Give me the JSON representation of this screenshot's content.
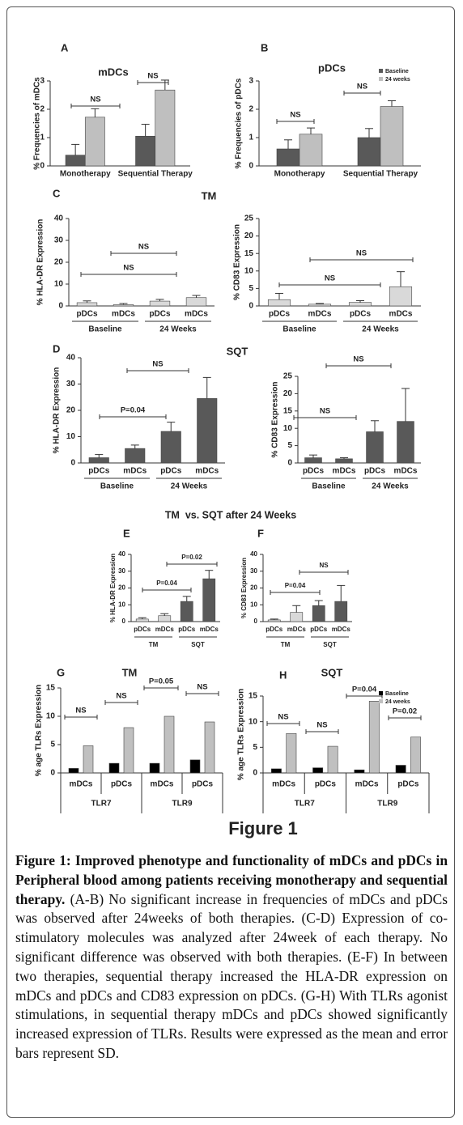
{
  "section_titles": [
    "TM",
    "SQT",
    "TM  vs. SQT after 24 Weeks"
  ],
  "figure_label": "Figure 1",
  "caption": {
    "bold": "Figure 1: Improved phenotype and functionality of mDCs and pDCs in Peripheral blood among patients receiving monotherapy and sequential therapy.",
    "text": "(A-B) No significant increase in frequencies of mDCs and pDCs was observed after 24weeks of both therapies. (C-D) Expression of co-stimulatory molecules was analyzed after 24week of each therapy. No significant difference was observed with both therapies. (E-F) In between two therapies, sequential therapy increased the HLA-DR expression on mDCs and pDCs and CD83 expression on pDCs. (G-H) With TLRs agonist stimulations, in sequential therapy mDCs and pDCs showed significantly increased expression of TLRs. Results were expressed as the mean and error bars represent SD."
  },
  "chart_data": [
    {
      "type": "bar",
      "panel": "A",
      "title": "mDCs",
      "ylabel": "% Frequencies of mDCs",
      "categories": [
        "Monotherapy",
        "Sequential Therapy"
      ],
      "series": [
        {
          "color": "#595959",
          "values": [
            0.38,
            1.05
          ],
          "errors": [
            0.38,
            0.42
          ]
        },
        {
          "color": "#bfbfbf",
          "values": [
            1.72,
            2.68
          ],
          "errors": [
            0.3,
            0.35
          ]
        }
      ],
      "ylim": [
        0,
        3
      ],
      "yticks": [
        0,
        1,
        2,
        3
      ],
      "annotations": [
        "NS",
        "NS"
      ]
    },
    {
      "type": "bar",
      "panel": "B",
      "title": "pDCs",
      "ylabel": "% Frequencies of pDCs",
      "categories": [
        "Monotherapy",
        "Sequential Therapy"
      ],
      "series": [
        {
          "name": "Baseline",
          "color": "#595959",
          "values": [
            0.6,
            1.0
          ],
          "errors": [
            0.32,
            0.32
          ]
        },
        {
          "name": "24 weeks",
          "color": "#bfbfbf",
          "values": [
            1.12,
            2.1
          ],
          "errors": [
            0.22,
            0.2
          ]
        }
      ],
      "ylim": [
        0,
        3
      ],
      "yticks": [
        0,
        1,
        2,
        3
      ],
      "legend": "top-right",
      "annotations": [
        "NS",
        "NS"
      ]
    },
    {
      "type": "bar",
      "panel": "C",
      "ylabel": "% HLA-DR Expression",
      "categories": [
        "pDCs",
        "mDCs",
        "pDCs",
        "mDCs"
      ],
      "groups": [
        "Baseline",
        "24 Weeks"
      ],
      "series": [
        {
          "color": "#d9d9d9",
          "values": [
            1.5,
            0.6,
            2.2,
            3.8
          ],
          "errors": [
            0.8,
            0.5,
            0.8,
            1.0
          ]
        }
      ],
      "ylim": [
        0,
        40
      ],
      "yticks": [
        0,
        10,
        20,
        30,
        40
      ],
      "annotations": [
        "NS",
        "NS"
      ]
    },
    {
      "type": "bar",
      "ylabel": "% CD83 Expression",
      "categories": [
        "pDCs",
        "mDCs",
        "pDCs",
        "mDCs"
      ],
      "groups": [
        "Baseline",
        "24 Weeks"
      ],
      "series": [
        {
          "color": "#d9d9d9",
          "values": [
            1.8,
            0.5,
            1.0,
            5.5
          ],
          "errors": [
            1.8,
            0.2,
            0.5,
            4.3
          ]
        }
      ],
      "ylim": [
        0,
        25
      ],
      "yticks": [
        0,
        5,
        10,
        15,
        20,
        25
      ],
      "annotations": [
        "NS",
        "NS"
      ]
    },
    {
      "type": "bar",
      "panel": "D",
      "ylabel": "% HLA-DR Expression",
      "categories": [
        "pDCs",
        "mDCs",
        "pDCs",
        "mDCs"
      ],
      "groups": [
        "Baseline",
        "24 Weeks"
      ],
      "series": [
        {
          "color": "#595959",
          "values": [
            2,
            5.5,
            12,
            24.5
          ],
          "errors": [
            1.2,
            1.3,
            3.5,
            8
          ]
        }
      ],
      "ylim": [
        0,
        40
      ],
      "yticks": [
        0,
        10,
        20,
        30,
        40
      ],
      "annotations": [
        "P=0.04",
        "NS"
      ]
    },
    {
      "type": "bar",
      "ylabel": "% CD83 Expression",
      "categories": [
        "pDCs",
        "mDCs",
        "pDCs",
        "mDCs"
      ],
      "groups": [
        "Baseline",
        "24 Weeks"
      ],
      "series": [
        {
          "color": "#595959",
          "values": [
            1.5,
            1.2,
            9,
            12
          ],
          "errors": [
            0.8,
            0.3,
            3.2,
            9.5
          ]
        }
      ],
      "ylim": [
        0,
        25
      ],
      "yticks": [
        0,
        5,
        10,
        15,
        20,
        25
      ],
      "annotations": [
        "NS",
        "NS"
      ]
    },
    {
      "type": "bar",
      "panel": "E",
      "ylabel": "% HLA-DR Expression",
      "categories": [
        "pDCs",
        "mDCs",
        "pDCs",
        "mDCs"
      ],
      "groups": [
        "TM",
        "SQT"
      ],
      "series": [
        {
          "colors": [
            "#d9d9d9",
            "#d9d9d9",
            "#595959",
            "#595959"
          ],
          "values": [
            1.5,
            3.5,
            12,
            25.5
          ],
          "errors": [
            0.8,
            1.2,
            3,
            5
          ]
        }
      ],
      "ylim": [
        0,
        40
      ],
      "yticks": [
        0,
        10,
        20,
        30,
        40
      ],
      "annotations": [
        "P=0.04",
        "P=0.02"
      ]
    },
    {
      "type": "bar",
      "panel": "F",
      "ylabel": "% CD83 Expression",
      "categories": [
        "pDCs",
        "mDCs",
        "pDCs",
        "mDCs"
      ],
      "groups": [
        "TM",
        "SQT"
      ],
      "series": [
        {
          "colors": [
            "#d9d9d9",
            "#d9d9d9",
            "#595959",
            "#595959"
          ],
          "values": [
            1,
            5.5,
            9.5,
            12
          ],
          "errors": [
            0.5,
            4,
            3,
            9.5
          ]
        }
      ],
      "ylim": [
        0,
        40
      ],
      "yticks": [
        0,
        10,
        20,
        30,
        40
      ],
      "annotations": [
        "P=0.04",
        "NS"
      ]
    },
    {
      "type": "bar",
      "panel": "G",
      "title": "TM",
      "ylabel": "% age TLRs Expression",
      "categories": [
        "mDCs",
        "pDCs",
        "mDCs",
        "pDCs"
      ],
      "groups": [
        "TLR7",
        "TLR9"
      ],
      "series": [
        {
          "color": "#000000",
          "values": [
            0.8,
            1.7,
            1.7,
            2.3
          ]
        },
        {
          "color": "#c0c0c0",
          "values": [
            4.8,
            8,
            10,
            9
          ]
        }
      ],
      "ylim": [
        0,
        15
      ],
      "yticks": [
        0,
        5,
        10,
        15
      ],
      "annotations": [
        "NS",
        "NS",
        "P=0.05",
        "NS"
      ]
    },
    {
      "type": "bar",
      "panel": "H",
      "title": "SQT",
      "ylabel": "% age TLRs Expression",
      "categories": [
        "mDCs",
        "pDCs",
        "mDCs",
        "pDCs"
      ],
      "groups": [
        "TLR7",
        "TLR9"
      ],
      "series": [
        {
          "name": "Baseline",
          "color": "#000000",
          "values": [
            0.8,
            1.0,
            0.6,
            1.5
          ]
        },
        {
          "name": "24 weeks",
          "color": "#c0c0c0",
          "values": [
            7.7,
            5.2,
            14,
            7
          ]
        }
      ],
      "ylim": [
        0,
        15
      ],
      "yticks": [
        0,
        5,
        10,
        15
      ],
      "legend": "top-right",
      "annotations": [
        "NS",
        "NS",
        "P=0.04",
        "P=0.02"
      ]
    }
  ]
}
